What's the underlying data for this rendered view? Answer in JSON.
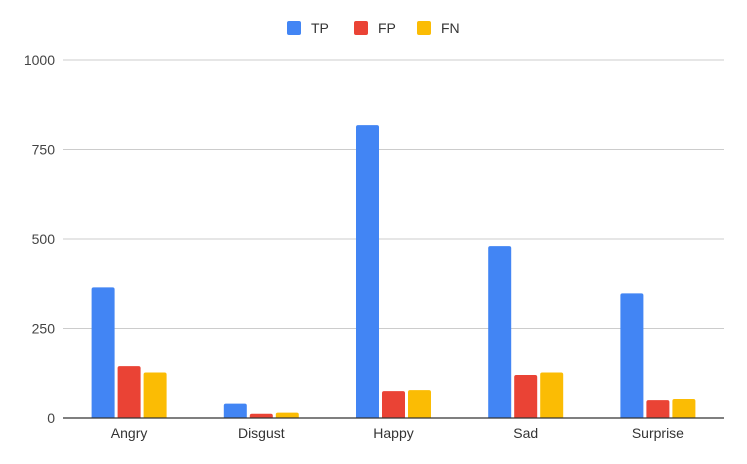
{
  "chart_data": {
    "type": "bar",
    "categories": [
      "Angry",
      "Disgust",
      "Happy",
      "Sad",
      "Surprise"
    ],
    "series": [
      {
        "name": "TP",
        "color": "#4285f4",
        "values": [
          365,
          40,
          818,
          480,
          348
        ]
      },
      {
        "name": "FP",
        "color": "#ea4335",
        "values": [
          145,
          12,
          75,
          120,
          50
        ]
      },
      {
        "name": "FN",
        "color": "#fbbc04",
        "values": [
          127,
          15,
          78,
          127,
          53
        ]
      }
    ],
    "ylim": [
      0,
      1000
    ],
    "yticks": [
      "0",
      "250",
      "500",
      "750",
      "1000"
    ],
    "legend_position": "top-center",
    "grid": true
  }
}
